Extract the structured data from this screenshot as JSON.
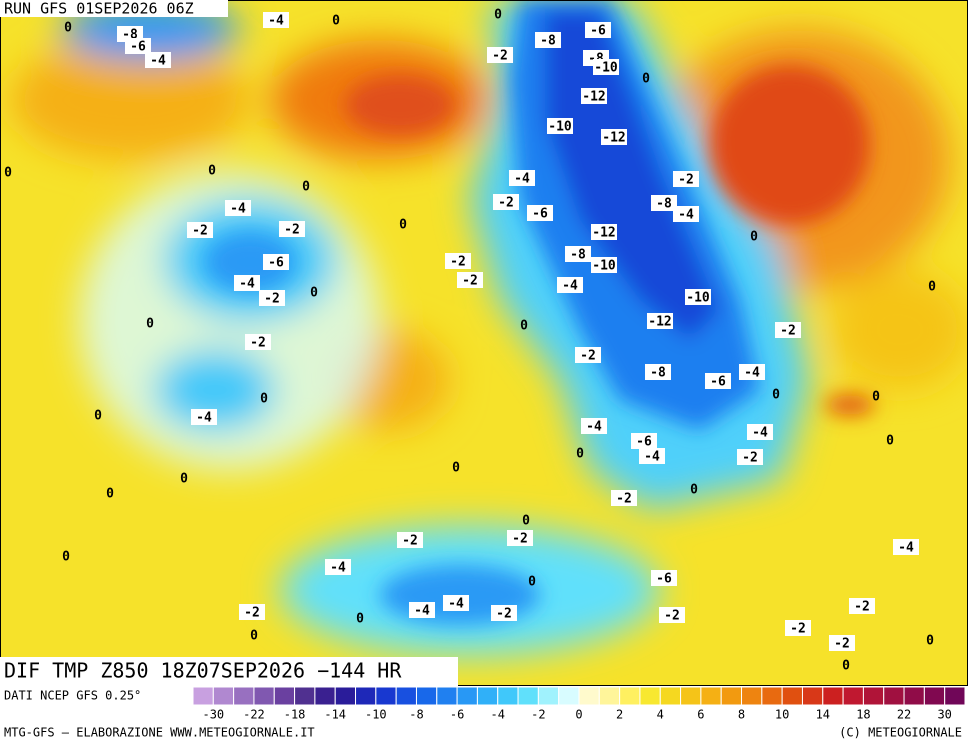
{
  "header": {
    "run": "RUN GFS 01SEP2026 06Z"
  },
  "map": {
    "product": "DIF TMP Z850 18Z07SEP2026 −144 HR",
    "contour_labels": [
      0,
      -4,
      0,
      0,
      -8,
      -6,
      -4,
      -2,
      -8,
      -6,
      -8,
      -10,
      -12,
      0,
      -10,
      -12,
      0,
      0,
      0,
      -4,
      -4,
      -2,
      -2,
      0,
      -2,
      -6,
      -2,
      -8,
      -4,
      -12,
      0,
      -6,
      -2,
      -8,
      -10,
      -4,
      -2,
      0,
      -2,
      -4,
      -10,
      0,
      0,
      0,
      -12,
      -2,
      -2,
      -2,
      -8,
      -6,
      -4,
      0,
      -4,
      0,
      0,
      0,
      -4,
      -6,
      -4,
      -4,
      0,
      -2,
      0,
      0,
      0,
      0,
      -2,
      0,
      0,
      -2,
      -2,
      0,
      -4,
      -4,
      0,
      -6,
      -4,
      -4,
      -2,
      0,
      -2,
      -2,
      -2,
      0,
      -2,
      -2,
      0,
      0
    ]
  },
  "legend": {
    "source": "DATI NCEP GFS 0.25°",
    "colors": [
      "#c8a0e0",
      "#b088d0",
      "#9870c0",
      "#8058b0",
      "#6a40a0",
      "#503090",
      "#3a2090",
      "#2a1c9a",
      "#1e28b8",
      "#1838d0",
      "#1850e0",
      "#1868ea",
      "#2080f0",
      "#2898f5",
      "#30b0f8",
      "#40c8fa",
      "#60e0fb",
      "#a0f2fd",
      "#d8fcff",
      "#fffacc",
      "#fff59a",
      "#fff060",
      "#f8e830",
      "#f5d820",
      "#f5c418",
      "#f5b014",
      "#f29a10",
      "#ee8410",
      "#e86a10",
      "#e05010",
      "#d83818",
      "#cc2020",
      "#c01830",
      "#b01438",
      "#a01040",
      "#900c48",
      "#800850",
      "#700658"
    ],
    "ticks": [
      -30,
      -22,
      -18,
      -14,
      -10,
      -8,
      -6,
      -4,
      -2,
      0,
      2,
      4,
      6,
      8,
      10,
      14,
      18,
      22,
      30
    ]
  },
  "footer": {
    "left": "MTG-GFS — ELABORAZIONE WWW.METEOGIORNALE.IT",
    "right": "(C) METEOGIORNALE"
  }
}
